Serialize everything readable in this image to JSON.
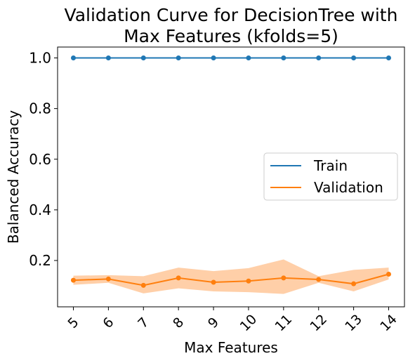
{
  "chart_data": {
    "type": "line",
    "title_lines": [
      "Validation Curve for DecisionTree with",
      "Max Features (kfolds=5)"
    ],
    "xlabel": "Max Features",
    "ylabel": "Balanced Accuracy",
    "x": [
      5,
      6,
      7,
      8,
      9,
      10,
      11,
      12,
      13,
      14
    ],
    "x_tick_labels": [
      "5",
      "6",
      "7",
      "8",
      "9",
      "10",
      "11",
      "12",
      "13",
      "14"
    ],
    "y_ticks": [
      0.2,
      0.4,
      0.6,
      0.8,
      1.0
    ],
    "y_tick_labels": [
      "0.2",
      "0.4",
      "0.6",
      "0.8",
      "1.0"
    ],
    "ylim": [
      0.017,
      1.043
    ],
    "grid": false,
    "legend_position": "center-right",
    "series": [
      {
        "name": "Train",
        "color": "#1f77b4",
        "values": [
          1.0,
          1.0,
          1.0,
          1.0,
          1.0,
          1.0,
          1.0,
          1.0,
          1.0,
          1.0
        ],
        "band_lower": [
          1.0,
          1.0,
          1.0,
          1.0,
          1.0,
          1.0,
          1.0,
          1.0,
          1.0,
          1.0
        ],
        "band_upper": [
          1.0,
          1.0,
          1.0,
          1.0,
          1.0,
          1.0,
          1.0,
          1.0,
          1.0,
          1.0
        ]
      },
      {
        "name": "Validation",
        "color": "#ff7f0e",
        "band_color": "#ffcfa8",
        "values": [
          0.122,
          0.127,
          0.102,
          0.131,
          0.114,
          0.119,
          0.131,
          0.125,
          0.108,
          0.146
        ],
        "band_lower": [
          0.104,
          0.112,
          0.07,
          0.09,
          0.078,
          0.075,
          0.068,
          0.112,
          0.078,
          0.125
        ],
        "band_upper": [
          0.14,
          0.142,
          0.138,
          0.172,
          0.158,
          0.17,
          0.204,
          0.138,
          0.163,
          0.172
        ]
      }
    ]
  }
}
